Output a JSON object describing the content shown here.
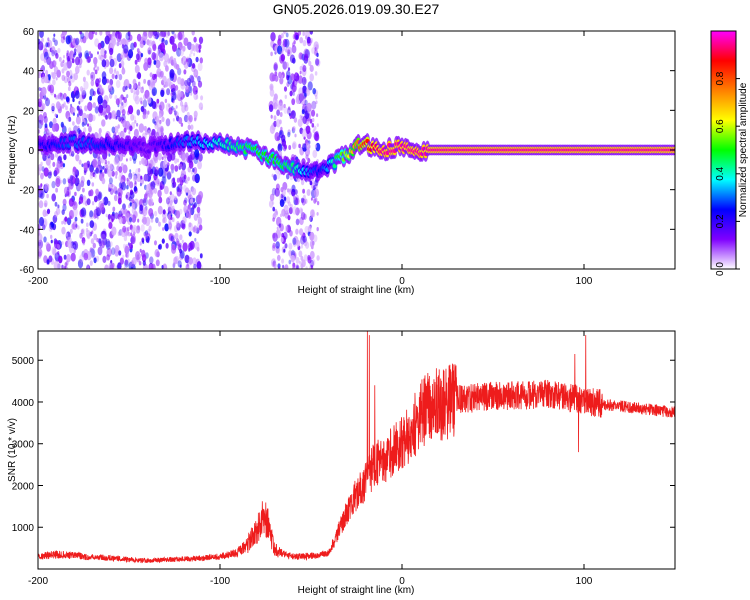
{
  "title": "GN05.2026.019.09.30.E27",
  "colors": {
    "snr_line": "#ee1c1c",
    "frame": "#000000",
    "background": "#ffffff"
  },
  "chart_data": [
    {
      "type": "heatmap",
      "xlabel": "Height of straight line (km)",
      "ylabel": "Frequency (Hz)",
      "xlim": [
        -200,
        150
      ],
      "ylim": [
        -60,
        60
      ],
      "x_ticks": [
        -200,
        -100,
        0,
        100
      ],
      "x_tick_labels": [
        "-200",
        "-100",
        "0",
        "100"
      ],
      "y_ticks": [
        -60,
        -40,
        -20,
        0,
        20,
        40,
        60
      ],
      "y_tick_labels": [
        "-60",
        "-40",
        "-20",
        "0",
        "20",
        "40",
        "60"
      ],
      "colorbar": {
        "label": "Normalized spectral amplitude",
        "range": [
          0,
          1
        ],
        "ticks": [
          0,
          0.2,
          0.4,
          0.6,
          0.8
        ],
        "tick_labels": [
          "0.0",
          "0.2",
          "0.4",
          "0.6",
          "0.8"
        ],
        "colormap": [
          "#ffffff",
          "#7f00ff",
          "#0000ff",
          "#00ffff",
          "#00ff00",
          "#ffff00",
          "#ff8000",
          "#ff0000",
          "#ff00ff"
        ]
      },
      "noise_regions": [
        {
          "x_range": [
            -200,
            -110
          ],
          "y_range": [
            -60,
            60
          ],
          "amplitude": 0.1
        },
        {
          "x_range": [
            -72,
            -46
          ],
          "y_range": [
            -60,
            60
          ],
          "amplitude": 0.1
        }
      ],
      "ridge": {
        "x": [
          -200,
          -180,
          -160,
          -140,
          -120,
          -100,
          -90,
          -80,
          -70,
          -60,
          -50,
          -45,
          -40,
          -35,
          -30,
          -25,
          -20,
          -15,
          -10,
          -5,
          0,
          5,
          10,
          20,
          50,
          100,
          150
        ],
        "freq": [
          2,
          4,
          3,
          1,
          4,
          4,
          2,
          -1,
          -5,
          -9,
          -11,
          -10,
          -8,
          -5,
          -2,
          2,
          3,
          1,
          0,
          1,
          2,
          1,
          0,
          0,
          0,
          0,
          0
        ],
        "amplitude": [
          0.22,
          0.3,
          0.25,
          0.15,
          0.3,
          0.4,
          0.45,
          0.5,
          0.5,
          0.45,
          0.3,
          0.25,
          0.35,
          0.5,
          0.6,
          0.75,
          0.85,
          0.9,
          0.95,
          0.95,
          0.95,
          0.95,
          0.95,
          0.95,
          0.95,
          0.95,
          0.95
        ]
      }
    },
    {
      "type": "line",
      "xlabel": "Height of straight line (km)",
      "ylabel": "SNR (10 * v/v)",
      "xlim": [
        -200,
        150
      ],
      "ylim": [
        0,
        5700
      ],
      "x_ticks": [
        -200,
        -100,
        0,
        100
      ],
      "x_tick_labels": [
        "-200",
        "-100",
        "0",
        "100"
      ],
      "y_ticks": [
        1000,
        2000,
        3000,
        4000,
        5000
      ],
      "y_tick_labels": [
        "1000",
        "2000",
        "3000",
        "4000",
        "5000"
      ],
      "series": [
        {
          "name": "SNR",
          "x": [
            -200,
            -190,
            -180,
            -170,
            -160,
            -150,
            -140,
            -130,
            -120,
            -110,
            -100,
            -95,
            -90,
            -85,
            -80,
            -77,
            -75,
            -72,
            -70,
            -65,
            -60,
            -55,
            -50,
            -45,
            -40,
            -35,
            -30,
            -25,
            -20,
            -18,
            -15,
            -10,
            -5,
            0,
            5,
            10,
            15,
            20,
            25,
            30,
            40,
            50,
            60,
            70,
            80,
            90,
            100,
            110,
            120,
            130,
            140,
            150
          ],
          "values": [
            300,
            350,
            320,
            280,
            260,
            230,
            200,
            220,
            240,
            260,
            300,
            350,
            400,
            600,
            900,
            1200,
            1250,
            800,
            500,
            350,
            300,
            300,
            320,
            330,
            400,
            900,
            1400,
            1800,
            2100,
            2300,
            2500,
            2600,
            2800,
            3000,
            3300,
            3700,
            3900,
            3950,
            4000,
            4050,
            4100,
            4150,
            4150,
            4150,
            4200,
            4100,
            4050,
            3950,
            3900,
            3850,
            3800,
            3750
          ],
          "spikes": [
            {
              "x": -19,
              "value": 5700
            },
            {
              "x": -18,
              "value": 5600
            },
            {
              "x": -15,
              "value": 4400
            },
            {
              "x": 95,
              "value": 5150
            },
            {
              "x": 101,
              "value": 5600
            },
            {
              "x": 97,
              "value": 2800
            }
          ]
        }
      ]
    }
  ]
}
